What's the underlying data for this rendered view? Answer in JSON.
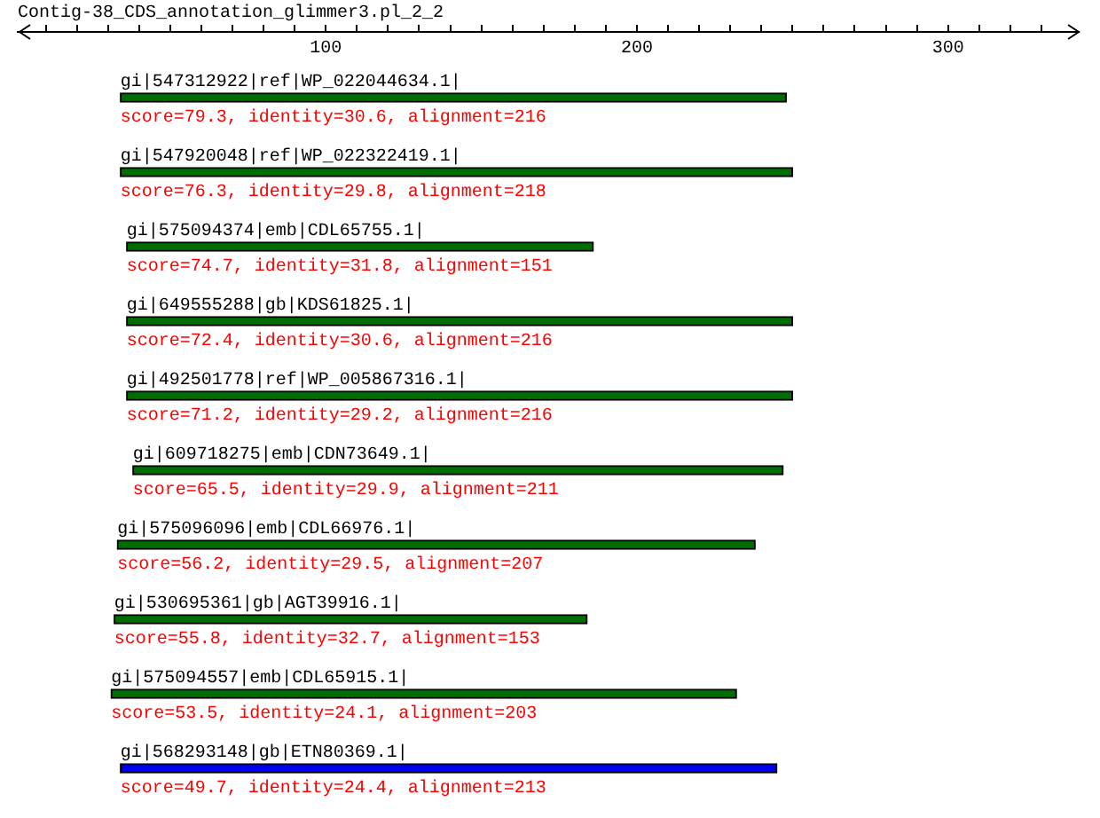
{
  "chart_data": {
    "type": "bar",
    "orientation": "horizontal",
    "title": "Contig-38_CDS_annotation_glimmer3.pl_2_2",
    "categories": [
      "gi|547312922|ref|WP_022044634.1|",
      "gi|547920048|ref|WP_022322419.1|",
      "gi|575094374|emb|CDL65755.1|",
      "gi|649555288|gb|KDS61825.1|",
      "gi|492501778|ref|WP_005867316.1|",
      "gi|609718275|emb|CDN73649.1|",
      "gi|575096096|emb|CDL66976.1|",
      "gi|530695361|gb|AGT39916.1|",
      "gi|575094557|emb|CDL65915.1|",
      "gi|568293148|gb|ETN80369.1|"
    ],
    "base": [
      34,
      34,
      36,
      36,
      36,
      38,
      33,
      32,
      31,
      34
    ],
    "values": [
      214,
      216,
      150,
      214,
      214,
      209,
      205,
      152,
      201,
      211
    ],
    "colors": [
      "#006e00",
      "#006e00",
      "#006e00",
      "#006e00",
      "#006e00",
      "#006e00",
      "#006e00",
      "#006e00",
      "#006e00",
      "#0000f0"
    ],
    "xlim": [
      1,
      342
    ],
    "xticks": [
      {
        "value": 10,
        "label": null
      },
      {
        "value": 20,
        "label": null
      },
      {
        "value": 30,
        "label": null
      },
      {
        "value": 40,
        "label": null
      },
      {
        "value": 50,
        "label": null
      },
      {
        "value": 60,
        "label": null
      },
      {
        "value": 70,
        "label": null
      },
      {
        "value": 80,
        "label": null
      },
      {
        "value": 90,
        "label": null
      },
      100,
      {
        "value": 110,
        "label": null
      },
      {
        "value": 120,
        "label": null
      },
      {
        "value": 130,
        "label": null
      },
      {
        "value": 140,
        "label": null
      },
      {
        "value": 150,
        "label": null
      },
      {
        "value": 160,
        "label": null
      },
      {
        "value": 170,
        "label": null
      },
      {
        "value": 180,
        "label": null
      },
      {
        "value": 190,
        "label": null
      },
      200,
      {
        "value": 210,
        "label": null
      },
      {
        "value": 220,
        "label": null
      },
      {
        "value": 230,
        "label": null
      },
      {
        "value": 240,
        "label": null
      },
      {
        "value": 250,
        "label": null
      },
      {
        "value": 260,
        "label": null
      },
      {
        "value": 270,
        "label": null
      },
      {
        "value": 280,
        "label": null
      },
      {
        "value": 290,
        "label": null
      },
      300,
      {
        "value": 310,
        "label": null
      },
      {
        "value": 320,
        "label": null
      },
      {
        "value": 330,
        "label": null
      }
    ],
    "annotations": [
      "score=79.3, identity=30.6, alignment=216",
      "score=76.3, identity=29.8, alignment=218",
      "score=74.7, identity=31.8, alignment=151",
      "score=72.4, identity=30.6, alignment=216",
      "score=71.2, identity=29.2, alignment=216",
      "score=65.5, identity=29.9, alignment=211",
      "score=56.2, identity=29.5, alignment=207",
      "score=55.8, identity=32.7, alignment=153",
      "score=53.5, identity=24.1, alignment=203",
      "score=49.7, identity=24.4, alignment=213"
    ],
    "grid": false,
    "legend": false
  }
}
